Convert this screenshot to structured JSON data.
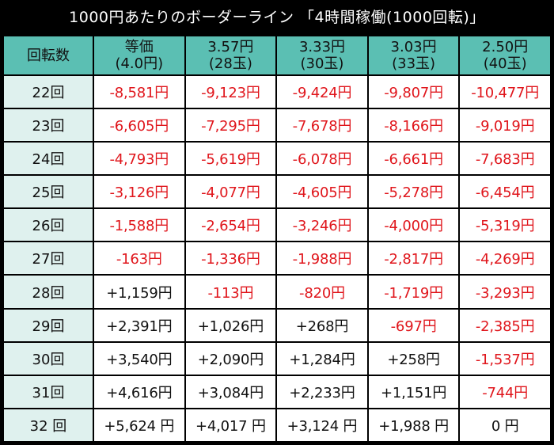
{
  "title": "1000円あたりのボーダーライン 「4時間稼働(1000回転)」",
  "table": {
    "row_header_label": "回転数",
    "columns": [
      {
        "line1": "等価",
        "line2": "(4.0円)"
      },
      {
        "line1": "3.57円",
        "line2": "(28玉)"
      },
      {
        "line1": "3.33円",
        "line2": "(30玉)"
      },
      {
        "line1": "3.03円",
        "line2": "(33玉)"
      },
      {
        "line1": "2.50円",
        "line2": "(40玉)"
      }
    ],
    "rows": [
      {
        "label": "22回",
        "cells": [
          "-8,581円",
          "-9,123円",
          "-9,424円",
          "-9,807円",
          "-10,477円"
        ]
      },
      {
        "label": "23回",
        "cells": [
          "-6,605円",
          "-7,295円",
          "-7,678円",
          "-8,166円",
          "-9,019円"
        ]
      },
      {
        "label": "24回",
        "cells": [
          "-4,793円",
          "-5,619円",
          "-6,078円",
          "-6,661円",
          "-7,683円"
        ]
      },
      {
        "label": "25回",
        "cells": [
          "-3,126円",
          "-4,077円",
          "-4,605円",
          "-5,278円",
          "-6,454円"
        ]
      },
      {
        "label": "26回",
        "cells": [
          "-1,588円",
          "-2,654円",
          "-3,246円",
          "-4,000円",
          "-5,319円"
        ]
      },
      {
        "label": "27回",
        "cells": [
          "-163円",
          "-1,336円",
          "-1,988円",
          "-2,817円",
          "-4,269円"
        ]
      },
      {
        "label": "28回",
        "cells": [
          "+1,159円",
          "-113円",
          "-820円",
          "-1,719円",
          "-3,293円"
        ]
      },
      {
        "label": "29回",
        "cells": [
          "+2,391円",
          "+1,026円",
          "+268円",
          "-697円",
          "-2,385円"
        ]
      },
      {
        "label": "30回",
        "cells": [
          "+3,540円",
          "+2,090円",
          "+1,284円",
          "+258円",
          "-1,537円"
        ]
      },
      {
        "label": "31回",
        "cells": [
          "+4,616円",
          "+3,084円",
          "+2,233円",
          "+1,151円",
          "-744円"
        ]
      },
      {
        "label": "32 回",
        "cells": [
          "+5,624 円",
          "+4,017 円",
          "+3,124 円",
          "+1,988 円",
          "0 円"
        ]
      }
    ]
  },
  "colors": {
    "background": "#000000",
    "header_fill": "#5bbfb3",
    "row_label_fill": "#dff1ee",
    "negative_text": "#e0161c",
    "positive_text": "#111111"
  }
}
